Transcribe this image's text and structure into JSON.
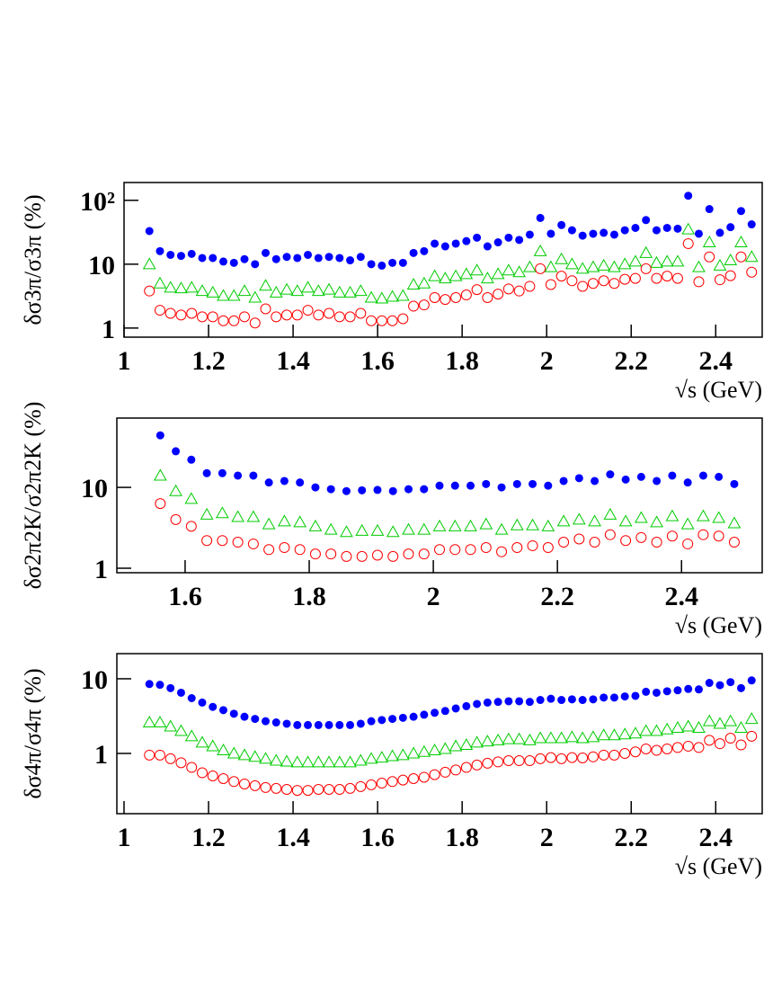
{
  "chart_data": [
    {
      "type": "scatter",
      "log_y": true,
      "x_label": "√s (GeV)",
      "y_label": "δσ3π/σ3π (%)",
      "xlim": [
        1,
        2.51
      ],
      "ylim": [
        0.72,
        190
      ],
      "xticks": [
        1,
        1.2,
        1.4,
        1.6,
        1.8,
        2,
        2.2,
        2.4
      ],
      "yticks": [
        1,
        10,
        {
          "value": 100,
          "label": "10²"
        }
      ],
      "x": [
        1.06,
        1.085,
        1.11,
        1.135,
        1.16,
        1.185,
        1.21,
        1.235,
        1.26,
        1.285,
        1.31,
        1.335,
        1.36,
        1.385,
        1.41,
        1.435,
        1.46,
        1.485,
        1.51,
        1.535,
        1.56,
        1.585,
        1.61,
        1.635,
        1.66,
        1.685,
        1.71,
        1.735,
        1.76,
        1.785,
        1.81,
        1.835,
        1.86,
        1.885,
        1.91,
        1.935,
        1.96,
        1.985,
        2.01,
        2.035,
        2.06,
        2.085,
        2.11,
        2.135,
        2.16,
        2.185,
        2.21,
        2.235,
        2.26,
        2.285,
        2.31,
        2.335,
        2.36,
        2.385,
        2.41,
        2.435,
        2.46,
        2.485
      ],
      "series": [
        {
          "color": "#0000ff",
          "marker": "circle-filled",
          "values": [
            33,
            16,
            14,
            13.5,
            14.5,
            12.5,
            12.5,
            11,
            10.5,
            12,
            10,
            15,
            12,
            13,
            12.5,
            14,
            12.5,
            13,
            12.5,
            11.5,
            13,
            10,
            9.5,
            10.5,
            10.5,
            15,
            16,
            21,
            19,
            21,
            23,
            26,
            19,
            22,
            26,
            24,
            29,
            53,
            30,
            41,
            34,
            28,
            30,
            31,
            29,
            34,
            37,
            49,
            34,
            37,
            36,
            118,
            30,
            73,
            31,
            38,
            68,
            42
          ]
        },
        {
          "color": "#00cc00",
          "marker": "triangle-open",
          "values": [
            10,
            5,
            4.3,
            4.2,
            4.3,
            3.8,
            3.6,
            3.2,
            3.2,
            3.8,
            3.0,
            4.6,
            3.6,
            4.0,
            3.8,
            4.3,
            3.8,
            4.0,
            3.6,
            3.6,
            3.8,
            3.0,
            2.9,
            3.1,
            3.2,
            4.8,
            5.0,
            6.5,
            6.0,
            6.5,
            7.0,
            8.0,
            6.0,
            7.0,
            8.0,
            7.5,
            9.0,
            16,
            9.0,
            12,
            10,
            8.5,
            9.0,
            9.5,
            9.0,
            10,
            11,
            15,
            10.5,
            11,
            11,
            35,
            9.0,
            22,
            9.5,
            11.5,
            22,
            13
          ]
        },
        {
          "color": "#ff0000",
          "marker": "circle-open",
          "values": [
            3.8,
            1.9,
            1.7,
            1.6,
            1.7,
            1.5,
            1.5,
            1.3,
            1.3,
            1.5,
            1.2,
            2.0,
            1.5,
            1.6,
            1.6,
            1.9,
            1.6,
            1.7,
            1.5,
            1.5,
            1.7,
            1.3,
            1.3,
            1.3,
            1.4,
            2.2,
            2.3,
            3.0,
            2.8,
            3.0,
            3.3,
            4.0,
            3.0,
            3.4,
            4.1,
            3.8,
            4.5,
            8.5,
            4.8,
            6.5,
            5.5,
            4.5,
            5.0,
            5.5,
            5.0,
            5.8,
            6.0,
            8.5,
            6.0,
            6.5,
            6.0,
            21,
            5.3,
            13,
            5.7,
            6.6,
            13,
            7.5
          ]
        }
      ]
    },
    {
      "type": "scatter",
      "log_y": true,
      "x_label": "√s (GeV)",
      "y_label": "δσ2π2K/σ2π2K (%)",
      "xlim": [
        1.49,
        2.53
      ],
      "ylim": [
        0.88,
        72
      ],
      "xticks": [
        1.6,
        1.8,
        2,
        2.2,
        2.4
      ],
      "yticks": [
        1,
        10
      ],
      "x": [
        1.56,
        1.585,
        1.61,
        1.635,
        1.66,
        1.685,
        1.71,
        1.735,
        1.76,
        1.785,
        1.81,
        1.835,
        1.86,
        1.885,
        1.91,
        1.935,
        1.96,
        1.985,
        2.01,
        2.035,
        2.06,
        2.085,
        2.11,
        2.135,
        2.16,
        2.185,
        2.21,
        2.235,
        2.26,
        2.285,
        2.31,
        2.335,
        2.36,
        2.385,
        2.41,
        2.435,
        2.46,
        2.485
      ],
      "series": [
        {
          "color": "#0000ff",
          "marker": "circle-filled",
          "values": [
            44,
            28,
            22,
            15,
            15,
            14,
            14,
            11.5,
            12,
            11.5,
            10,
            9.5,
            9,
            9.2,
            9.3,
            9,
            9.5,
            9.5,
            10.5,
            10.5,
            10.5,
            11,
            10,
            11,
            11,
            10.5,
            12,
            13,
            12,
            14.5,
            12.5,
            13.5,
            12,
            14,
            11.5,
            14,
            13.5,
            11
          ]
        },
        {
          "color": "#00cc00",
          "marker": "triangle-open",
          "values": [
            14,
            9,
            7.2,
            4.6,
            4.8,
            4.3,
            4.3,
            3.5,
            3.8,
            3.7,
            3.3,
            3.0,
            2.8,
            2.9,
            2.9,
            2.8,
            3.0,
            3.0,
            3.3,
            3.3,
            3.3,
            3.5,
            3.0,
            3.4,
            3.4,
            3.3,
            3.8,
            4.0,
            3.8,
            4.6,
            3.8,
            4.2,
            3.7,
            4.4,
            3.5,
            4.4,
            4.2,
            3.6
          ]
        },
        {
          "color": "#ff0000",
          "marker": "circle-open",
          "values": [
            6.3,
            4.0,
            3.3,
            2.2,
            2.2,
            2.1,
            2.0,
            1.7,
            1.8,
            1.7,
            1.5,
            1.5,
            1.4,
            1.4,
            1.45,
            1.4,
            1.5,
            1.5,
            1.7,
            1.7,
            1.7,
            1.8,
            1.6,
            1.8,
            1.9,
            1.8,
            2.1,
            2.3,
            2.1,
            2.6,
            2.2,
            2.4,
            2.1,
            2.5,
            2.0,
            2.6,
            2.5,
            2.1
          ]
        }
      ]
    },
    {
      "type": "scatter",
      "log_y": true,
      "x_label": "√s (GeV)",
      "y_label": "δσ4π/σ4π (%)",
      "xlim": [
        0.983,
        2.51
      ],
      "ylim": [
        0.156,
        21.7
      ],
      "xticks": [
        1,
        1.2,
        1.4,
        1.6,
        1.8,
        2,
        2.2,
        2.4
      ],
      "yticks": [
        1,
        10
      ],
      "x": [
        1.06,
        1.085,
        1.11,
        1.135,
        1.16,
        1.185,
        1.21,
        1.235,
        1.26,
        1.285,
        1.31,
        1.335,
        1.36,
        1.385,
        1.41,
        1.435,
        1.46,
        1.485,
        1.51,
        1.535,
        1.56,
        1.585,
        1.61,
        1.635,
        1.66,
        1.685,
        1.71,
        1.735,
        1.76,
        1.785,
        1.81,
        1.835,
        1.86,
        1.885,
        1.91,
        1.935,
        1.96,
        1.985,
        2.01,
        2.035,
        2.06,
        2.085,
        2.11,
        2.135,
        2.16,
        2.185,
        2.21,
        2.235,
        2.26,
        2.285,
        2.31,
        2.335,
        2.36,
        2.385,
        2.41,
        2.435,
        2.46,
        2.485
      ],
      "series": [
        {
          "color": "#0000ff",
          "marker": "circle-filled",
          "values": [
            8.5,
            8.3,
            7.5,
            6.5,
            5.5,
            4.8,
            4.2,
            3.8,
            3.4,
            3.1,
            2.9,
            2.7,
            2.6,
            2.5,
            2.4,
            2.4,
            2.4,
            2.4,
            2.4,
            2.4,
            2.5,
            2.7,
            2.8,
            2.9,
            3.0,
            3.1,
            3.3,
            3.5,
            3.7,
            4.0,
            4.3,
            4.6,
            4.8,
            4.9,
            5.0,
            5.0,
            4.9,
            5.2,
            5.4,
            5.2,
            5.3,
            5.2,
            5.3,
            5.6,
            5.6,
            5.8,
            5.9,
            6.7,
            6.5,
            6.8,
            7.0,
            7.3,
            7.2,
            8.8,
            8.2,
            9.0,
            7.5,
            9.5
          ]
        },
        {
          "color": "#00cc00",
          "marker": "triangle-open",
          "values": [
            2.6,
            2.6,
            2.3,
            2.0,
            1.7,
            1.4,
            1.25,
            1.1,
            1.0,
            0.95,
            0.9,
            0.85,
            0.8,
            0.78,
            0.76,
            0.76,
            0.76,
            0.76,
            0.76,
            0.76,
            0.8,
            0.85,
            0.88,
            0.92,
            0.95,
            1.0,
            1.05,
            1.1,
            1.15,
            1.25,
            1.3,
            1.4,
            1.45,
            1.5,
            1.55,
            1.55,
            1.5,
            1.6,
            1.6,
            1.6,
            1.65,
            1.6,
            1.65,
            1.75,
            1.75,
            1.8,
            1.85,
            2.0,
            2.0,
            2.1,
            2.2,
            2.3,
            2.2,
            2.7,
            2.5,
            2.7,
            2.2,
            2.9
          ]
        },
        {
          "color": "#ff0000",
          "marker": "circle-open",
          "values": [
            0.95,
            0.95,
            0.85,
            0.75,
            0.65,
            0.55,
            0.5,
            0.46,
            0.42,
            0.39,
            0.37,
            0.35,
            0.34,
            0.33,
            0.32,
            0.32,
            0.33,
            0.33,
            0.33,
            0.34,
            0.36,
            0.38,
            0.4,
            0.42,
            0.44,
            0.46,
            0.48,
            0.52,
            0.56,
            0.6,
            0.65,
            0.7,
            0.74,
            0.77,
            0.8,
            0.8,
            0.8,
            0.85,
            0.88,
            0.85,
            0.88,
            0.87,
            0.9,
            0.95,
            0.95,
            1.0,
            1.05,
            1.15,
            1.1,
            1.15,
            1.2,
            1.25,
            1.2,
            1.5,
            1.35,
            1.6,
            1.3,
            1.7
          ]
        }
      ]
    }
  ]
}
